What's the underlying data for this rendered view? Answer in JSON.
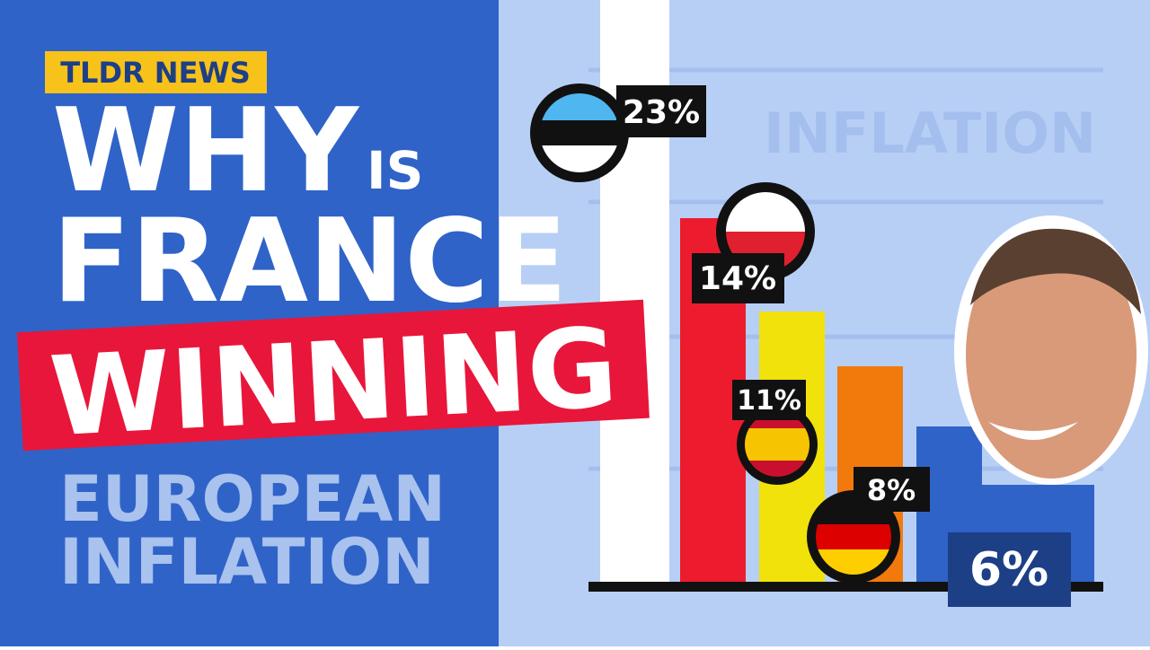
{
  "brand": "TLDR NEWS",
  "headline": {
    "line1": "WHY",
    "line1_small": "IS",
    "line2": "FRANCE",
    "banner": "WINNING",
    "line3": "EUROPEAN",
    "line4": "INFLATION"
  },
  "chart": {
    "watermark": "INFLATION",
    "labels": [
      "23%",
      "14%",
      "11%",
      "8%",
      "6%"
    ]
  }
}
